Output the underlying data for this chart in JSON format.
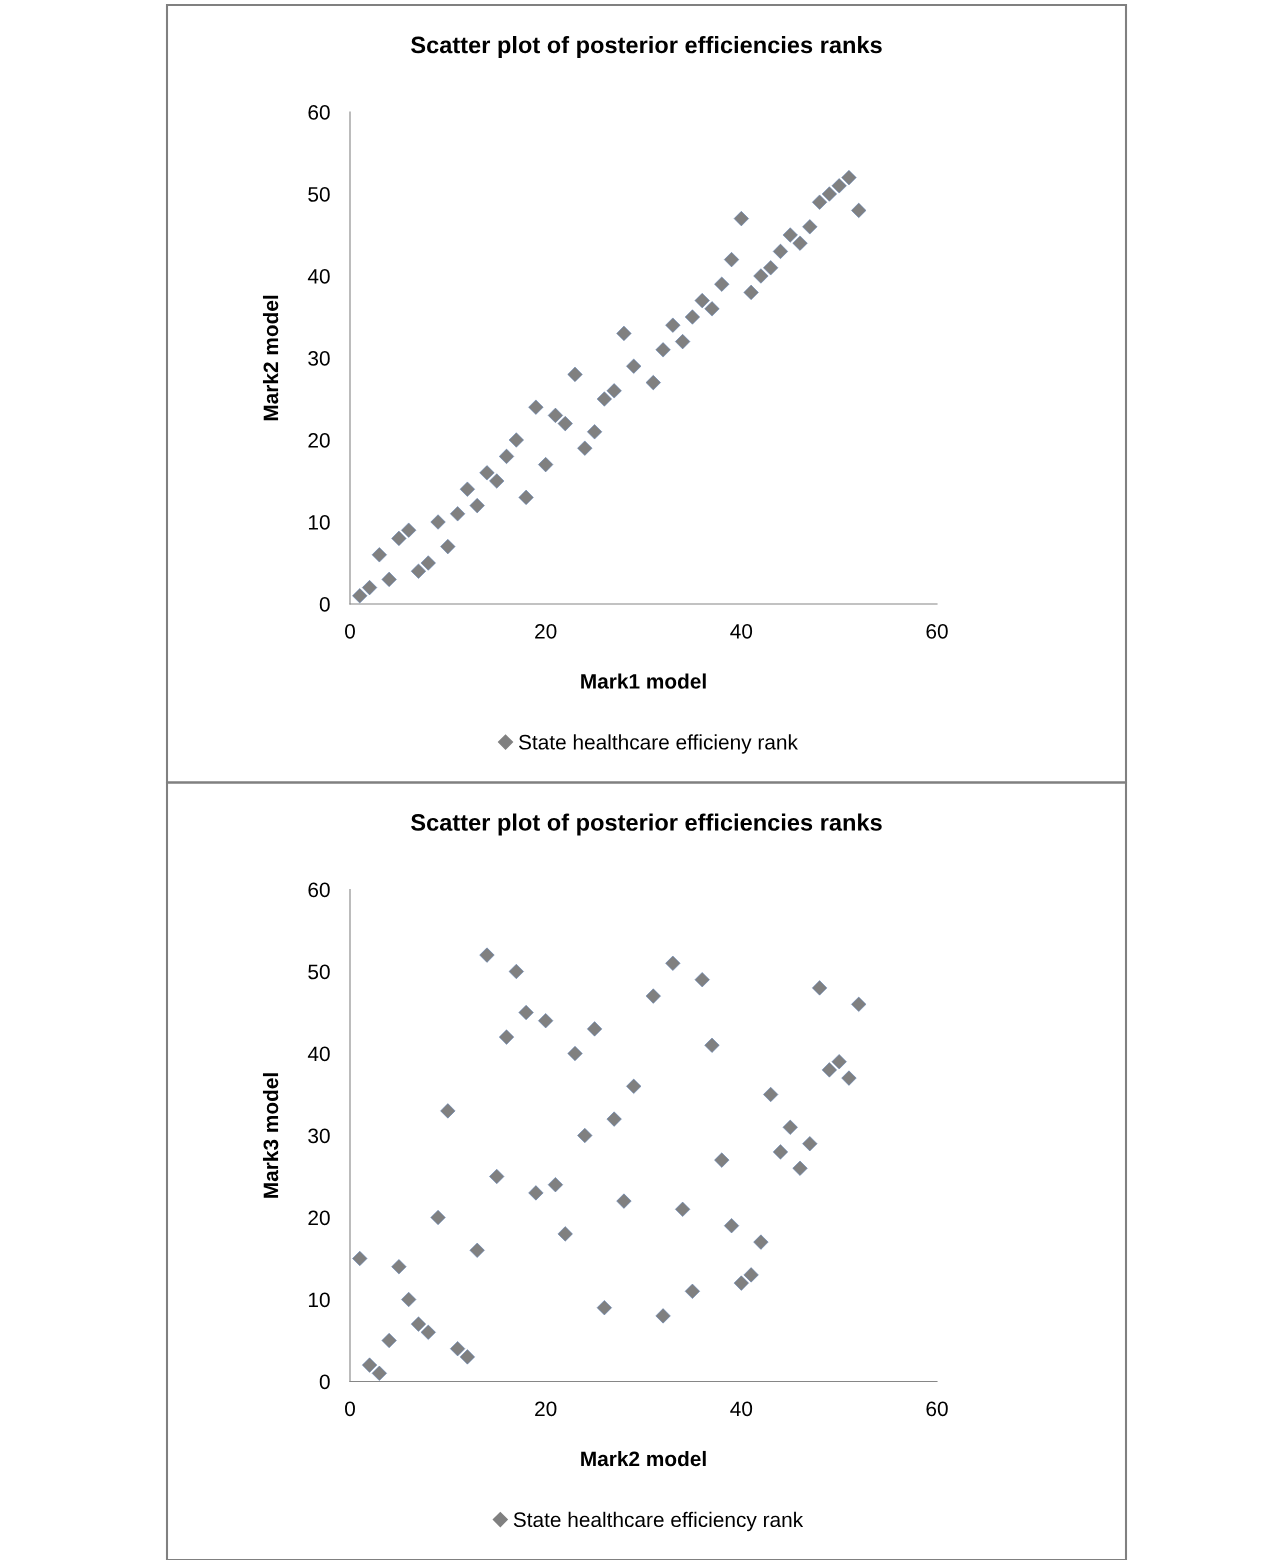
{
  "chart_data": [
    {
      "type": "scatter",
      "title": "Scatter plot of posterior efficiencies ranks",
      "xlabel": "Mark1 model",
      "ylabel": "Mark2 model",
      "xlim": [
        0,
        60
      ],
      "ylim": [
        0,
        60
      ],
      "xticks": [
        0,
        20,
        40,
        60
      ],
      "yticks": [
        0,
        10,
        20,
        30,
        40,
        50,
        60
      ],
      "grid": false,
      "legend": "bottom",
      "marker": "diamond",
      "series": [
        {
          "name": "State healthcare efficieny rank",
          "color": "#808080",
          "x": [
            1,
            2,
            3,
            4,
            5,
            6,
            7,
            8,
            9,
            10,
            11,
            12,
            13,
            14,
            15,
            16,
            17,
            18,
            19,
            20,
            21,
            22,
            23,
            24,
            25,
            26,
            27,
            28,
            29,
            31,
            32,
            33,
            34,
            35,
            36,
            37,
            38,
            39,
            40,
            41,
            42,
            43,
            44,
            45,
            46,
            47,
            48,
            49,
            50,
            51,
            52
          ],
          "values": [
            1,
            2,
            6,
            3,
            8,
            9,
            4,
            5,
            10,
            7,
            11,
            14,
            12,
            16,
            15,
            18,
            20,
            13,
            24,
            17,
            23,
            22,
            28,
            19,
            21,
            25,
            26,
            33,
            29,
            27,
            31,
            34,
            32,
            35,
            37,
            36,
            39,
            42,
            47,
            38,
            40,
            41,
            43,
            45,
            44,
            46,
            49,
            50,
            51,
            52,
            48
          ]
        }
      ]
    },
    {
      "type": "scatter",
      "title": "Scatter plot of posterior efficiencies ranks",
      "xlabel": "Mark2 model",
      "ylabel": "Mark3 model",
      "xlim": [
        0,
        60
      ],
      "ylim": [
        0,
        60
      ],
      "xticks": [
        0,
        20,
        40,
        60
      ],
      "yticks": [
        0,
        10,
        20,
        30,
        40,
        50,
        60
      ],
      "grid": false,
      "legend": "bottom",
      "marker": "diamond",
      "series": [
        {
          "name": "State healthcare efficiency rank",
          "color": "#808080",
          "x": [
            1,
            2,
            3,
            4,
            5,
            6,
            7,
            8,
            9,
            10,
            11,
            12,
            13,
            14,
            15,
            16,
            17,
            18,
            19,
            20,
            21,
            22,
            23,
            24,
            25,
            26,
            27,
            28,
            29,
            31,
            32,
            33,
            34,
            35,
            36,
            37,
            38,
            39,
            40,
            41,
            42,
            43,
            44,
            45,
            46,
            47,
            48,
            49,
            50,
            51,
            52
          ],
          "values": [
            15,
            2,
            1,
            5,
            14,
            10,
            7,
            6,
            20,
            33,
            4,
            3,
            16,
            52,
            25,
            42,
            50,
            45,
            23,
            44,
            24,
            18,
            40,
            30,
            43,
            9,
            32,
            22,
            36,
            47,
            8,
            51,
            21,
            11,
            49,
            41,
            27,
            19,
            12,
            13,
            17,
            35,
            28,
            31,
            26,
            29,
            48,
            38,
            39,
            37,
            46
          ]
        }
      ]
    }
  ]
}
